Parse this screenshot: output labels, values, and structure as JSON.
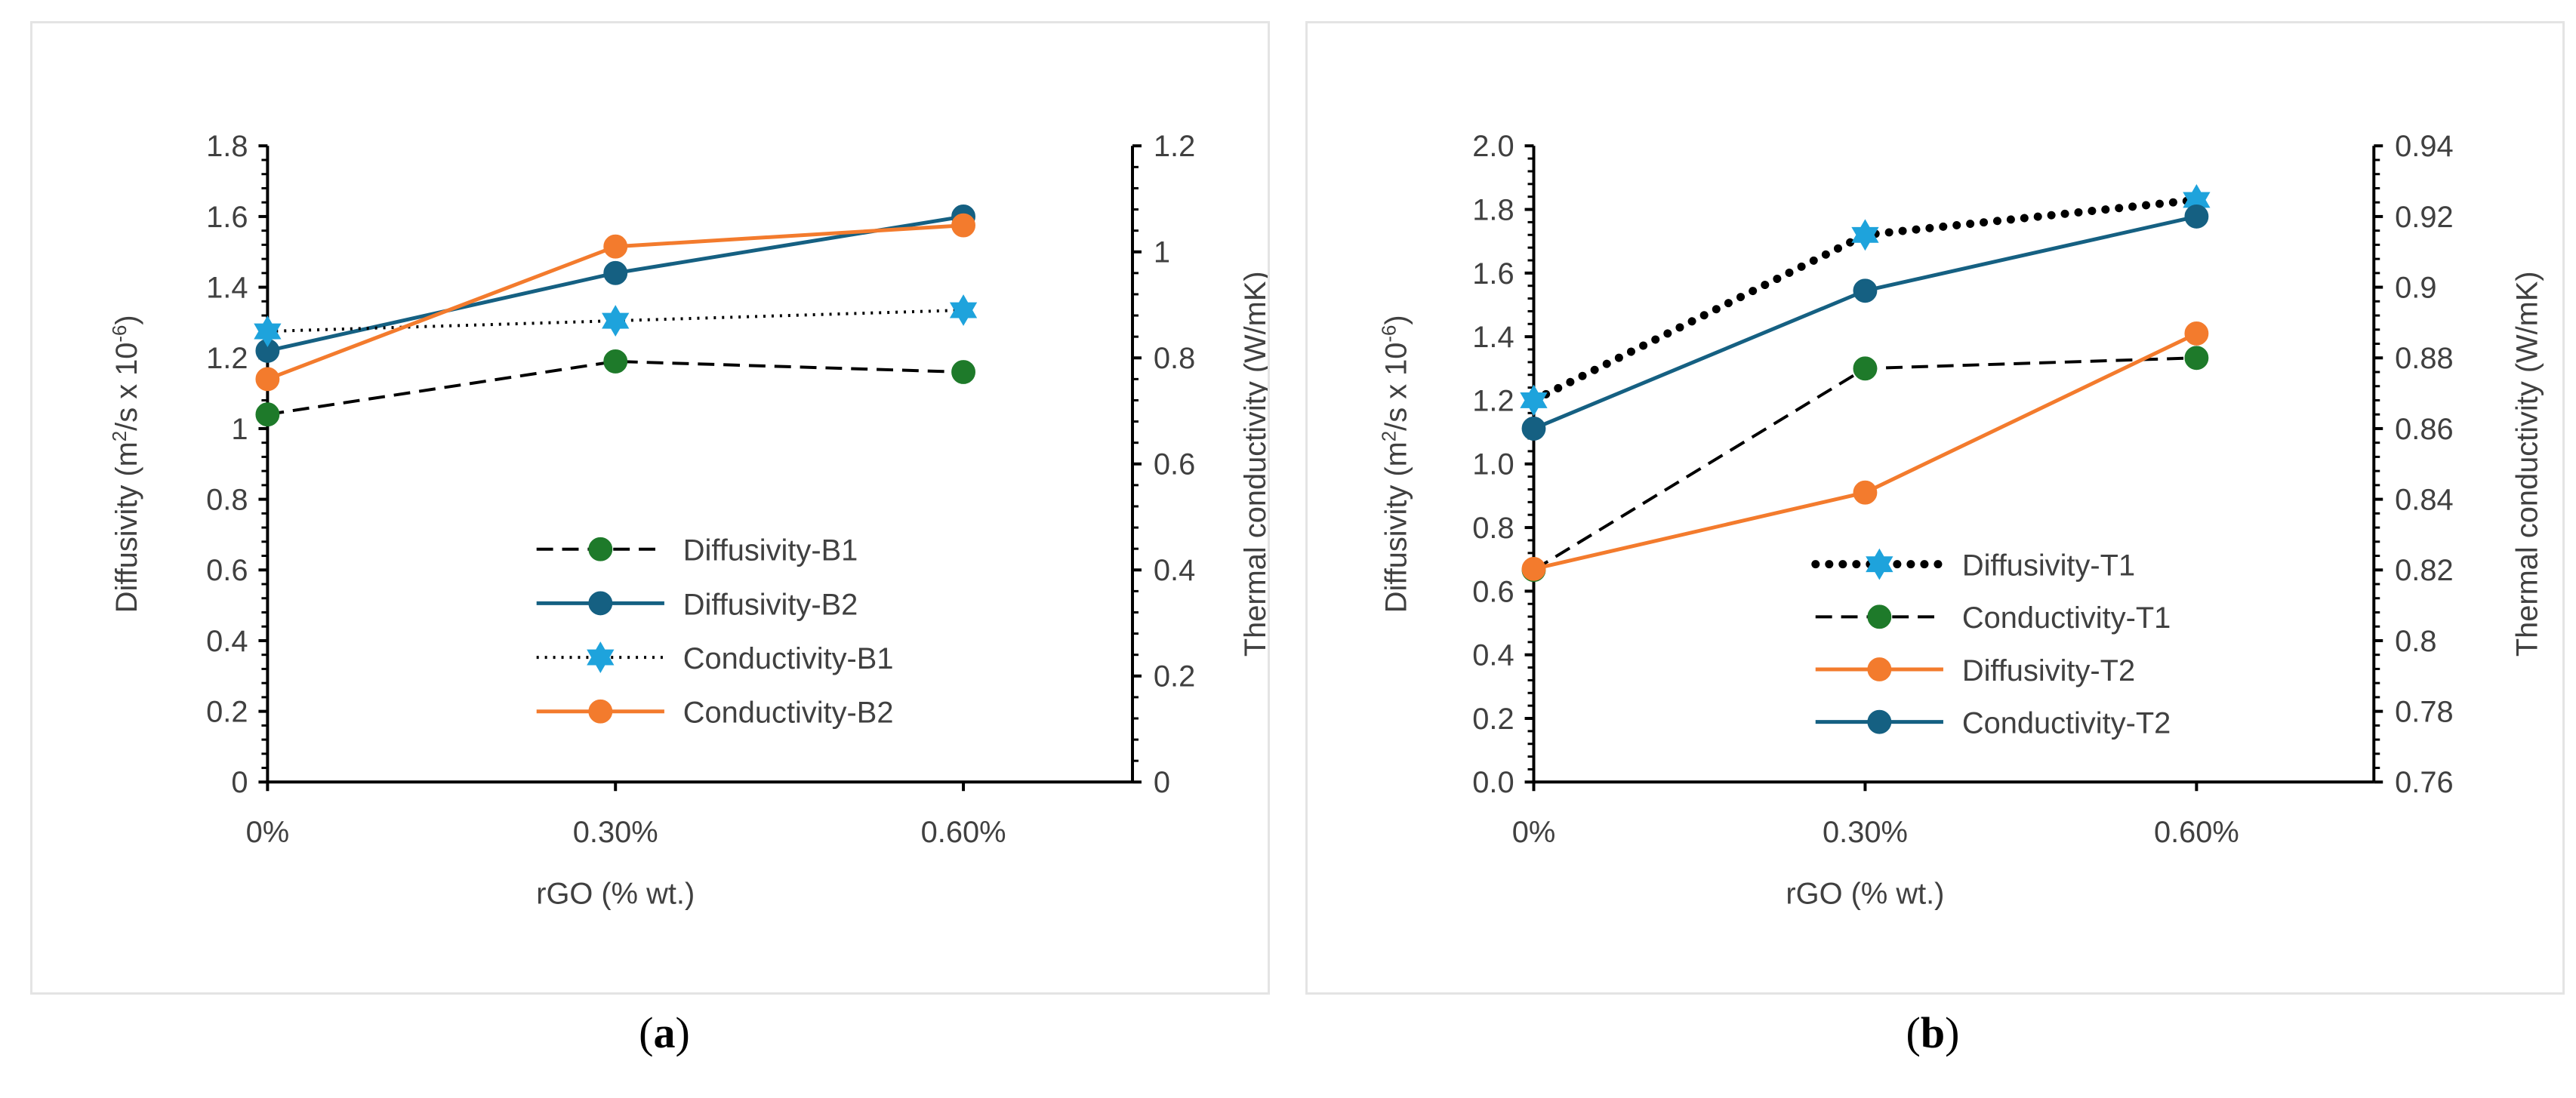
{
  "chart_data": [
    {
      "type": "line",
      "panel_label": "a",
      "title": "",
      "categories": [
        "0%",
        "0.30%",
        "0.60%"
      ],
      "xlabel": "rGO (% wt.)",
      "ylabel": {
        "pre": "Diffusivity (m",
        "sup1": "2",
        "mid": "/s x 10",
        "sup2": "-6",
        "post": ")"
      },
      "y2label": "Thermal conductivity (W/mK)",
      "ylim": [
        0,
        1.8
      ],
      "y2lim": [
        0,
        1.2
      ],
      "yticks": [
        "0",
        "0.2",
        "0.4",
        "0.6",
        "0.8",
        "1",
        "1.2",
        "1.4",
        "1.6",
        "1.8"
      ],
      "y2ticks": [
        "0",
        "0.2",
        "0.4",
        "0.6",
        "0.8",
        "1",
        "1.2"
      ],
      "grid": false,
      "legend_position": "bottom-right",
      "series": [
        {
          "name": "Diffusivity-B1",
          "axis": "left",
          "values": [
            1.04,
            1.19,
            1.16
          ],
          "color": "#000000",
          "marker_color": "#1e7a2a",
          "marker": "circle",
          "dash": "dashed"
        },
        {
          "name": "Diffusivity-B2",
          "axis": "left",
          "values": [
            1.22,
            1.44,
            1.6
          ],
          "color": "#156082",
          "marker_color": "#156082",
          "marker": "circle",
          "dash": "solid"
        },
        {
          "name": "Conductivity-B1",
          "axis": "right",
          "values": [
            0.85,
            0.87,
            0.89
          ],
          "color": "#000000",
          "marker_color": "#1ea3dc",
          "marker": "star",
          "dash": "dotted"
        },
        {
          "name": "Conductivity-B2",
          "axis": "right",
          "values": [
            0.76,
            1.01,
            1.05
          ],
          "color": "#f37b2d",
          "marker_color": "#f37b2d",
          "marker": "circle",
          "dash": "solid"
        }
      ]
    },
    {
      "type": "line",
      "panel_label": "b",
      "title": "",
      "categories": [
        "0%",
        "0.30%",
        "0.60%"
      ],
      "xlabel": "rGO (% wt.)",
      "ylabel": {
        "pre": "Diffusivity (m",
        "sup1": "2",
        "mid": "/s x 10",
        "sup2": "-6",
        "post": ")"
      },
      "y2label": "Thermal conductivity (W/mK)",
      "ylim": [
        0,
        2.0
      ],
      "y2lim": [
        0.76,
        0.94
      ],
      "yticks": [
        "0.0",
        "0.2",
        "0.4",
        "0.6",
        "0.8",
        "1.0",
        "1.2",
        "1.4",
        "1.6",
        "1.8",
        "2.0"
      ],
      "y2ticks": [
        "0.76",
        "0.78",
        "0.8",
        "0.82",
        "0.84",
        "0.86",
        "0.88",
        "0.9",
        "0.92",
        "0.94"
      ],
      "grid": false,
      "legend_position": "bottom-right",
      "series": [
        {
          "name": "Diffusivity-T1",
          "axis": "left",
          "values": [
            1.2,
            1.72,
            1.83
          ],
          "color": "#000000",
          "marker_color": "#1ea3dc",
          "marker": "star",
          "dash": "dotted-heavy"
        },
        {
          "name": "Conductivity-T1",
          "axis": "right",
          "values": [
            0.82,
            0.877,
            0.88
          ],
          "color": "#000000",
          "marker_color": "#1e7a2a",
          "marker": "circle",
          "dash": "dashed"
        },
        {
          "name": "Diffusivity-T2",
          "axis": "left",
          "values": [
            0.67,
            0.91,
            1.41
          ],
          "color": "#f37b2d",
          "marker_color": "#f37b2d",
          "marker": "circle",
          "dash": "solid"
        },
        {
          "name": "Conductivity-T2",
          "axis": "right",
          "values": [
            0.86,
            0.899,
            0.92
          ],
          "color": "#156082",
          "marker_color": "#156082",
          "marker": "circle",
          "dash": "solid"
        }
      ]
    }
  ]
}
